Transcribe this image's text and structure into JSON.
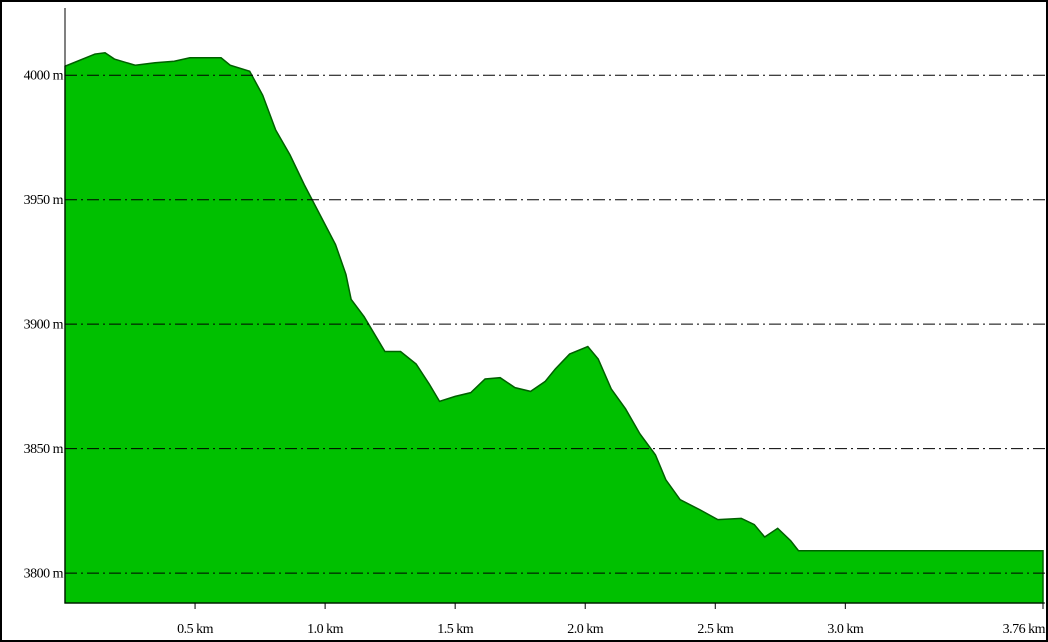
{
  "chart_data": {
    "type": "area",
    "x": [
      0,
      0.115,
      0.154,
      0.19,
      0.27,
      0.346,
      0.42,
      0.48,
      0.56,
      0.6,
      0.635,
      0.71,
      0.76,
      0.81,
      0.865,
      0.92,
      0.98,
      1.04,
      1.08,
      1.1,
      1.15,
      1.23,
      1.29,
      1.35,
      1.4,
      1.44,
      1.5,
      1.56,
      1.615,
      1.673,
      1.73,
      1.79,
      1.846,
      1.885,
      1.94,
      2.01,
      2.05,
      2.1,
      2.155,
      2.21,
      2.27,
      2.31,
      2.365,
      2.44,
      2.51,
      2.6,
      2.65,
      2.69,
      2.74,
      2.79,
      2.82,
      3.76
    ],
    "values": [
      4003.6,
      4008.5,
      4009,
      4006.5,
      4004,
      4005,
      4005.6,
      4007,
      4007,
      4007,
      4004,
      4001.6,
      3992,
      3978,
      3968,
      3956,
      3944,
      3932,
      3920,
      3910,
      3903,
      3889,
      3889,
      3884,
      3876,
      3869,
      3871,
      3872.5,
      3878,
      3878.5,
      3874.5,
      3873,
      3877,
      3882,
      3888,
      3891,
      3886,
      3874,
      3866,
      3856,
      3847.5,
      3837.5,
      3829.5,
      3825.5,
      3821.5,
      3822,
      3819.5,
      3814.5,
      3818,
      3813,
      3809,
      3809
    ],
    "color": "#00c000",
    "xlim": [
      0,
      3.76
    ],
    "ylim": [
      3788,
      4027
    ],
    "xticks": [
      {
        "value": 0.5,
        "label": "0.5 km"
      },
      {
        "value": 1.0,
        "label": "1.0 km"
      },
      {
        "value": 1.5,
        "label": "1.5 km"
      },
      {
        "value": 2.0,
        "label": "2.0 km"
      },
      {
        "value": 2.5,
        "label": "2.5 km"
      },
      {
        "value": 3.0,
        "label": "3.0 km"
      },
      {
        "value": 3.76,
        "label": "3.76 km"
      }
    ],
    "yticks": [
      {
        "value": 3800,
        "label": "3800 m"
      },
      {
        "value": 3850,
        "label": "3850 m"
      },
      {
        "value": 3900,
        "label": "3900 m"
      },
      {
        "value": 3950,
        "label": "3950 m"
      },
      {
        "value": 4000,
        "label": "4000 m"
      }
    ],
    "grid": true
  }
}
